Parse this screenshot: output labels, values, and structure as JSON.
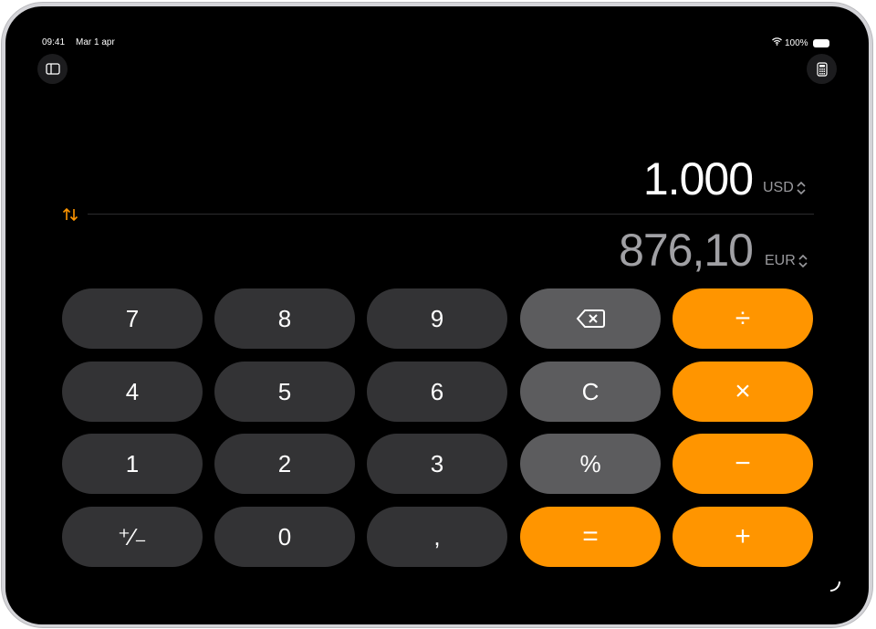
{
  "status_bar": {
    "time": "09:41",
    "date": "Mar 1 apr",
    "battery": "100%"
  },
  "toolbar": {
    "sidebar_icon": "sidebar-icon",
    "calculator_icon": "calculator-icon"
  },
  "converter": {
    "from_value": "1.000",
    "from_currency": "USD",
    "to_value": "876,10",
    "to_currency": "EUR",
    "swap_icon": "swap-arrows-icon"
  },
  "colors": {
    "accent": "#ff9500",
    "key_dark": "#333335",
    "key_gray": "#5c5c5e"
  },
  "keys": [
    "7",
    "8",
    "9",
    "⌫",
    "÷",
    "4",
    "5",
    "6",
    "C",
    "×",
    "1",
    "2",
    "3",
    "%",
    "−",
    "⁺∕₋",
    "0",
    ",",
    "=",
    "+"
  ]
}
